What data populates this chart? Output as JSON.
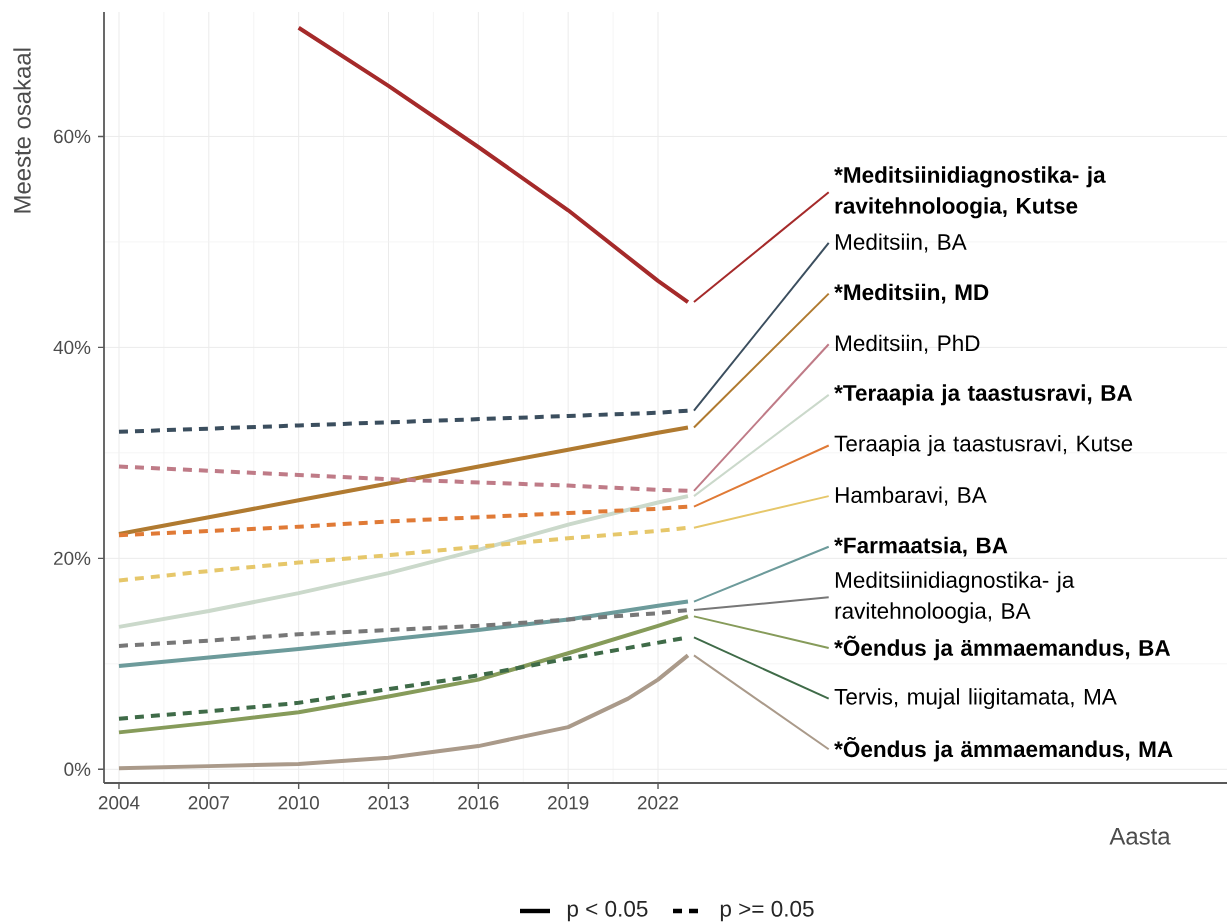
{
  "chart_data": {
    "type": "line",
    "xlabel": "Aasta",
    "ylabel": "Meeste osakaal",
    "x": [
      2004,
      2007,
      2010,
      2013,
      2016,
      2019,
      2022,
      2023
    ],
    "xlim": [
      2003.5,
      2041
    ],
    "ylim": [
      -1.3,
      71.8
    ],
    "xticks": [
      2004,
      2007,
      2010,
      2013,
      2016,
      2019,
      2022
    ],
    "yticks": [
      {
        "value": 0,
        "label": "0%"
      },
      {
        "value": 20,
        "label": "20%"
      },
      {
        "value": 40,
        "label": "40%"
      },
      {
        "value": 60,
        "label": "60%"
      }
    ],
    "grid": true,
    "annotations": [
      "p < 0.05",
      "p >= 0.05"
    ],
    "series": [
      {
        "name": "***Meditsiinidiagnostika- ja ravitehnoloogia, Kutse**",
        "color": "#a52a2a",
        "line_style": "solid",
        "x": [
          2010,
          2013,
          2016,
          2019,
          2022,
          2023
        ],
        "values": [
          70.3,
          64.8,
          59.0,
          53.0,
          46.3,
          44.3
        ]
      },
      {
        "name": "Meditsiin, BA",
        "color": "#3b4e5e",
        "line_style": "dashed",
        "values": [
          32.0,
          32.3,
          32.6,
          32.9,
          33.2,
          33.5,
          33.8,
          34.0
        ]
      },
      {
        "name": "***Meditsiin, MD**",
        "color": "#b07a30",
        "line_style": "solid",
        "values": [
          22.3,
          23.9,
          25.5,
          27.1,
          28.7,
          30.3,
          31.9,
          32.4
        ]
      },
      {
        "name": "Meditsiin, PhD",
        "color": "#bf7b87",
        "line_style": "dashed",
        "values": [
          28.7,
          28.3,
          27.9,
          27.5,
          27.2,
          26.9,
          26.5,
          26.4
        ]
      },
      {
        "name": "***Teraapia ja taastusravi, BA**",
        "color": "#cbd9cb",
        "line_style": "solid",
        "values": [
          13.5,
          15.0,
          16.7,
          18.6,
          20.8,
          23.2,
          25.3,
          25.9
        ]
      },
      {
        "name": "Teraapia ja taastusravi, Kutse",
        "color": "#e07a36",
        "line_style": "dashed",
        "values": [
          22.2,
          22.6,
          23.0,
          23.5,
          23.9,
          24.3,
          24.7,
          24.9
        ]
      },
      {
        "name": "Hambaravi, BA",
        "color": "#e6c76a",
        "line_style": "dashed",
        "values": [
          17.9,
          18.8,
          19.6,
          20.3,
          21.1,
          21.9,
          22.6,
          22.9
        ]
      },
      {
        "name": "***Farmaatsia, BA**",
        "color": "#6d9b9b",
        "line_style": "solid",
        "values": [
          9.8,
          10.6,
          11.4,
          12.3,
          13.2,
          14.2,
          15.5,
          15.9
        ]
      },
      {
        "name": "Meditsiinidiagnostika- ja ravitehnoloogia, BA",
        "color": "#777777",
        "line_style": "dashed",
        "values": [
          11.7,
          12.2,
          12.8,
          13.2,
          13.6,
          14.2,
          14.8,
          15.1
        ]
      },
      {
        "name": "***Õendus ja ämmaemandus, BA**",
        "color": "#869b5a",
        "line_style": "solid",
        "values": [
          3.5,
          4.4,
          5.4,
          6.9,
          8.5,
          11.0,
          13.6,
          14.5
        ]
      },
      {
        "name": "Tervis, mujal liigitamata, MA",
        "color": "#3f6b48",
        "line_style": "dashed",
        "values": [
          4.8,
          5.5,
          6.3,
          7.6,
          8.9,
          10.5,
          12.0,
          12.5
        ]
      },
      {
        "name": "***Õendus ja ämmaemandus, MA**",
        "color": "#aa9a8a",
        "line_style": "solid",
        "x": [
          2004,
          2007,
          2010,
          2013,
          2016,
          2019,
          2021,
          2022,
          2023
        ],
        "values": [
          0.1,
          0.3,
          0.5,
          1.1,
          2.2,
          4.0,
          6.7,
          8.5,
          10.8
        ]
      }
    ]
  }
}
